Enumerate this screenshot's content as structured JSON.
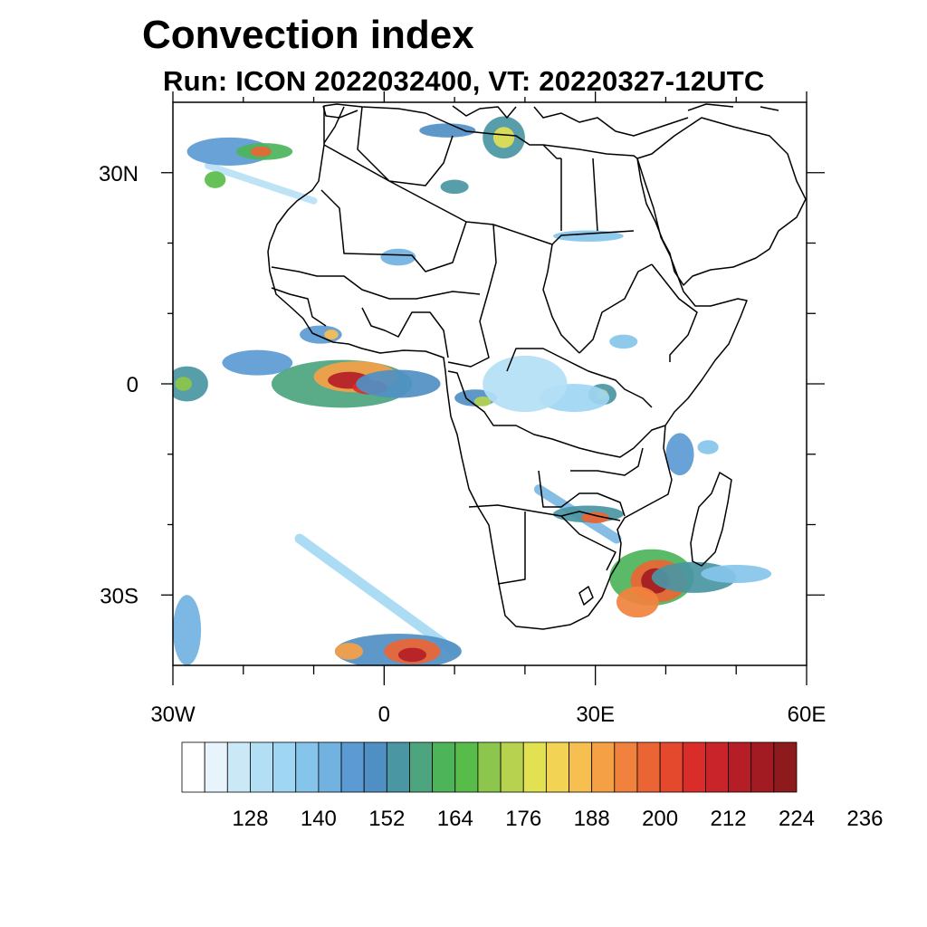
{
  "title": "Convection index",
  "subtitle": "Run: ICON 2022032400,  VT: 20220327-12UTC",
  "map": {
    "lon_range": [
      -30,
      60
    ],
    "lat_range": [
      -40,
      40
    ],
    "y_axis_labels": [
      {
        "lat": 30,
        "label": "30N"
      },
      {
        "lat": 0,
        "label": "0"
      },
      {
        "lat": -30,
        "label": "30S"
      }
    ],
    "x_axis_labels": [
      {
        "lon": -30,
        "label": "30W"
      },
      {
        "lon": 0,
        "label": "0"
      },
      {
        "lon": 30,
        "label": "30E"
      },
      {
        "lon": 60,
        "label": "60E"
      }
    ],
    "minor_ticks_lon": [
      -20,
      -10,
      10,
      20,
      40,
      50
    ],
    "minor_ticks_lat": [
      20,
      10,
      -10,
      -20
    ]
  },
  "colorbar": {
    "colors": [
      "#ffffff",
      "#e8f4fc",
      "#cbe8f7",
      "#b3dff5",
      "#9ed6f3",
      "#86c5eb",
      "#71b2e1",
      "#5b9ad3",
      "#4f8fc4",
      "#4a96a3",
      "#4ca57e",
      "#4db45a",
      "#58bc4a",
      "#8cc64c",
      "#b6d24f",
      "#e2e152",
      "#f2d354",
      "#f7bf4f",
      "#f6a046",
      "#f1823d",
      "#eb6534",
      "#e4482d",
      "#da2d2a",
      "#c92429",
      "#b51e27",
      "#a31b22",
      "#8d1a1d"
    ],
    "labels": [
      "128",
      "140",
      "152",
      "164",
      "176",
      "188",
      "200",
      "212",
      "224",
      "236"
    ],
    "label_bins": [
      3,
      6,
      9,
      12,
      15,
      18,
      21,
      24,
      27,
      30
    ]
  },
  "features": {
    "convection_cells": [
      {
        "lon": -18,
        "lat": 3,
        "rx": 5,
        "ry": 1.8,
        "level": 7
      },
      {
        "lon": -6,
        "lat": 0,
        "rx": 10,
        "ry": 3.4,
        "level": 10
      },
      {
        "lon": -4,
        "lat": 1,
        "rx": 6,
        "ry": 2.2,
        "level": 18
      },
      {
        "lon": -5,
        "lat": 0.5,
        "rx": 3,
        "ry": 1.2,
        "level": 24
      },
      {
        "lon": -2,
        "lat": -0.5,
        "rx": 2.5,
        "ry": 1,
        "level": 22
      },
      {
        "lon": 2,
        "lat": 0,
        "rx": 6,
        "ry": 2,
        "level": 8
      },
      {
        "lon": -28,
        "lat": 0,
        "rx": 3,
        "ry": 2.5,
        "level": 9
      },
      {
        "lon": -28.5,
        "lat": 0,
        "rx": 1.2,
        "ry": 1,
        "level": 13
      },
      {
        "lon": -9,
        "lat": 7,
        "rx": 3,
        "ry": 1.3,
        "level": 7
      },
      {
        "lon": -7.5,
        "lat": 7,
        "rx": 1,
        "ry": 0.7,
        "level": 17
      },
      {
        "lon": 13,
        "lat": -2,
        "rx": 3,
        "ry": 1.2,
        "level": 8
      },
      {
        "lon": 14,
        "lat": -2.5,
        "rx": 1.2,
        "ry": 0.7,
        "level": 14
      },
      {
        "lon": 31,
        "lat": -1.5,
        "rx": 2,
        "ry": 1.5,
        "level": 9
      },
      {
        "lon": 31,
        "lat": -1.5,
        "rx": 0.8,
        "ry": 0.7,
        "level": 14
      },
      {
        "lon": 27,
        "lat": -2,
        "rx": 5,
        "ry": 2,
        "level": 4
      },
      {
        "lon": 42,
        "lat": -10,
        "rx": 2,
        "ry": 3,
        "level": 7
      },
      {
        "lon": 46,
        "lat": -9,
        "rx": 1.5,
        "ry": 1,
        "level": 5
      },
      {
        "lon": 38,
        "lat": -27.5,
        "rx": 6,
        "ry": 4,
        "level": 11
      },
      {
        "lon": 39,
        "lat": -28,
        "rx": 4,
        "ry": 3,
        "level": 20
      },
      {
        "lon": 38.5,
        "lat": -28,
        "rx": 2,
        "ry": 1.8,
        "level": 25
      },
      {
        "lon": 36,
        "lat": -31,
        "rx": 3,
        "ry": 2.2,
        "level": 19
      },
      {
        "lon": 44,
        "lat": -27.5,
        "rx": 6,
        "ry": 2.2,
        "level": 9
      },
      {
        "lon": 50,
        "lat": -27,
        "rx": 5,
        "ry": 1.3,
        "level": 5
      },
      {
        "lon": 29,
        "lat": -18.5,
        "rx": 5,
        "ry": 1.2,
        "level": 9
      },
      {
        "lon": 30,
        "lat": -19,
        "rx": 2,
        "ry": 0.8,
        "level": 20
      },
      {
        "lon": 2,
        "lat": -38,
        "rx": 9,
        "ry": 2.5,
        "level": 8
      },
      {
        "lon": 4,
        "lat": -38,
        "rx": 4,
        "ry": 1.8,
        "level": 20
      },
      {
        "lon": 4,
        "lat": -38.5,
        "rx": 2,
        "ry": 1,
        "level": 24
      },
      {
        "lon": -5,
        "lat": -38,
        "rx": 2,
        "ry": 1.2,
        "level": 18
      },
      {
        "lon": -28,
        "lat": -35,
        "rx": 2,
        "ry": 5,
        "level": 6
      },
      {
        "lon": -22,
        "lat": 33,
        "rx": 6,
        "ry": 2,
        "level": 7
      },
      {
        "lon": -17,
        "lat": 33,
        "rx": 4,
        "ry": 1.2,
        "level": 11
      },
      {
        "lon": -17.5,
        "lat": 33,
        "rx": 1.5,
        "ry": 0.7,
        "level": 20
      },
      {
        "lon": -24,
        "lat": 29,
        "rx": 1.5,
        "ry": 1.2,
        "level": 12
      },
      {
        "lon": 9,
        "lat": 36,
        "rx": 4,
        "ry": 1,
        "level": 8
      },
      {
        "lon": 17,
        "lat": 35,
        "rx": 3,
        "ry": 3,
        "level": 9
      },
      {
        "lon": 17,
        "lat": 35,
        "rx": 1.5,
        "ry": 1.5,
        "level": 15
      },
      {
        "lon": 10,
        "lat": 28,
        "rx": 2,
        "ry": 1,
        "level": 9
      },
      {
        "lon": 2,
        "lat": 18,
        "rx": 2.5,
        "ry": 1.2,
        "level": 6
      },
      {
        "lon": 29,
        "lat": 21,
        "rx": 5,
        "ry": 0.8,
        "level": 5
      },
      {
        "lon": 20,
        "lat": 0,
        "rx": 6,
        "ry": 4,
        "level": 3
      },
      {
        "lon": 34,
        "lat": 6,
        "rx": 2,
        "ry": 1,
        "level": 5
      }
    ],
    "bands": [
      {
        "from": [
          -12,
          -22
        ],
        "to": [
          10,
          -38
        ],
        "width": 1.4,
        "level": 4
      },
      {
        "from": [
          22,
          -15
        ],
        "to": [
          33,
          -22
        ],
        "width": 1.4,
        "level": 6
      },
      {
        "from": [
          -25,
          31
        ],
        "to": [
          -10,
          26
        ],
        "width": 1,
        "level": 3
      }
    ]
  }
}
